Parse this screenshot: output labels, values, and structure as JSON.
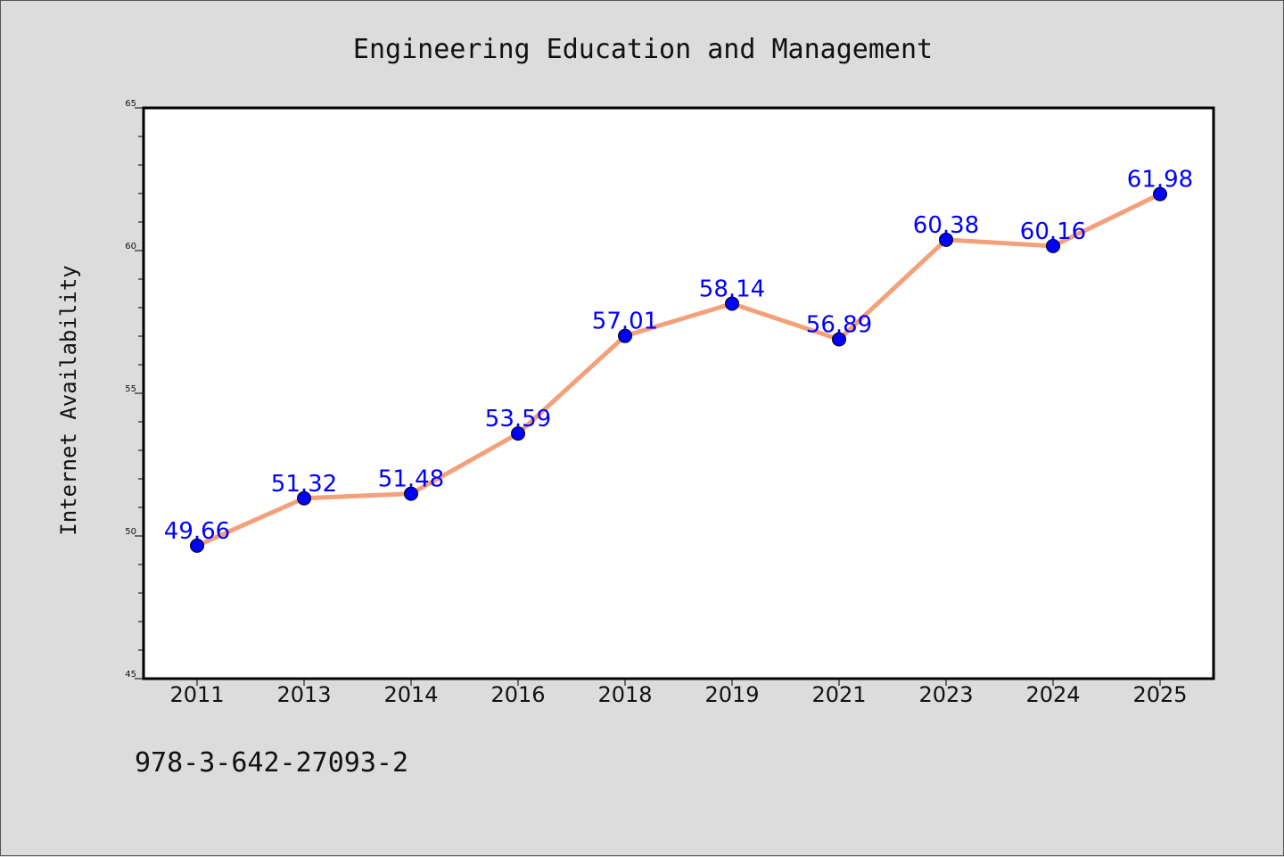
{
  "chart_data": {
    "type": "line",
    "title": "Engineering Education and Management",
    "xlabel": "",
    "ylabel": "Internet Availability",
    "categories": [
      "2011",
      "2013",
      "2014",
      "2016",
      "2018",
      "2019",
      "2021",
      "2023",
      "2024",
      "2025"
    ],
    "series": [
      {
        "values": [
          49.66,
          51.32,
          51.48,
          53.59,
          57.01,
          58.14,
          56.89,
          60.38,
          60.16,
          61.98
        ],
        "data_labels": [
          "49.66",
          "51.32",
          "51.48",
          "53.59",
          "57.01",
          "58.14",
          "56.89",
          "60.38",
          "60.16",
          "61.98"
        ],
        "line_color": "#f4a07a",
        "marker_color": "#0000ff"
      }
    ],
    "ylim": [
      45,
      65
    ],
    "yticks": [
      "45",
      "50",
      "55",
      "60",
      "65"
    ],
    "grid": false,
    "legend": "none"
  },
  "footnote": "978-3-642-27093-2"
}
